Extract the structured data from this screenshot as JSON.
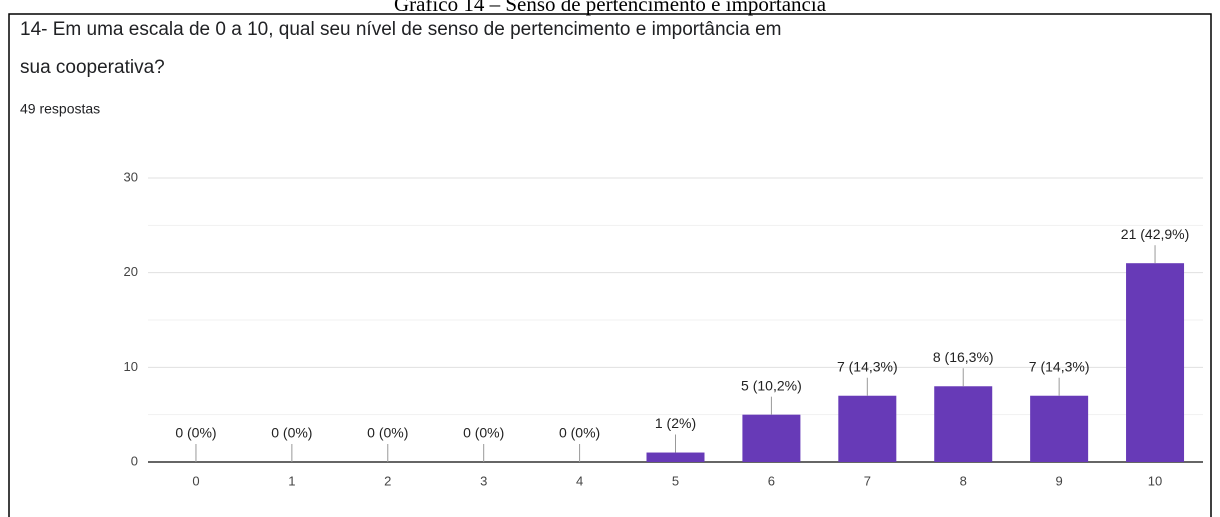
{
  "chart_data": {
    "type": "bar",
    "caption": "Gráfico 14 – Senso de pertencimento e importância",
    "title": [
      "14- Em uma escala de 0 a 10, qual seu nível de senso de pertencimento e importância em",
      "sua cooperativa?"
    ],
    "subtitle": "49 respostas",
    "categories": [
      "0",
      "1",
      "2",
      "3",
      "4",
      "5",
      "6",
      "7",
      "8",
      "9",
      "10"
    ],
    "values": [
      0,
      0,
      0,
      0,
      0,
      1,
      5,
      7,
      8,
      7,
      21
    ],
    "value_labels": [
      "0 (0%)",
      "0 (0%)",
      "0 (0%)",
      "0 (0%)",
      "0 (0%)",
      "1 (2%)",
      "5 (10,2%)",
      "7 (14,3%)",
      "8 (16,3%)",
      "7 (14,3%)",
      "21 (42,9%)"
    ],
    "color": "#673ab7",
    "ylim": [
      0,
      30
    ],
    "yticks": [
      0,
      10,
      20,
      30
    ],
    "minor_yticks": [
      5,
      15,
      25
    ],
    "grid": true
  }
}
